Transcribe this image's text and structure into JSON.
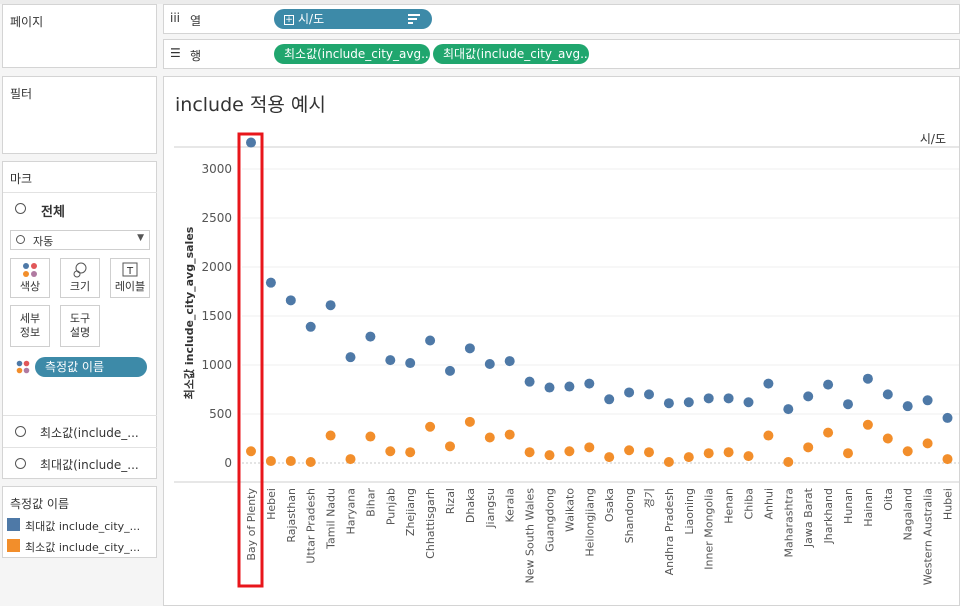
{
  "left": {
    "pages_title": "페이지",
    "filters_title": "필터",
    "marks_title": "마크",
    "marks_all": "전체",
    "mark_type": "자동",
    "btn_color": "색상",
    "btn_size": "크기",
    "btn_label": "레이블",
    "btn_detail_1": "세부",
    "btn_detail_2": "정보",
    "btn_tooltip_1": "도구",
    "btn_tooltip_2": "설명",
    "measure_names_pill": "측정값 이름",
    "mark_min": "최소값(include_...",
    "mark_max": "최대값(include_...",
    "legend_title": "측정값 이름",
    "legend_items": [
      {
        "label": "최대값 include_city_...",
        "color": "#4e79a7"
      },
      {
        "label": "최소값 include_city_...",
        "color": "#f28e2b"
      }
    ]
  },
  "shelves": {
    "columns_label": "열",
    "columns_pill": "시/도",
    "rows_label": "행",
    "rows_pill_1": "최소값(include_city_avg...",
    "rows_pill_2": "최대값(include_city_avg..."
  },
  "viz": {
    "title": "include 적용 예시",
    "header": "시/도",
    "y_axis_label": "최소값 include_city_avg_sales"
  },
  "chart_data": {
    "type": "scatter",
    "ylim": [
      -200,
      3550
    ],
    "yticks": [
      0,
      500,
      1000,
      1500,
      2000,
      2500,
      3000
    ],
    "categories": [
      "Bay of Plenty",
      "Hebei",
      "Rajasthan",
      "Uttar Pradesh",
      "Tamil Nadu",
      "Haryana",
      "Bihar",
      "Punjab",
      "Zhejiang",
      "Chhattisgarh",
      "Rizal",
      "Dhaka",
      "Jiangsu",
      "Kerala",
      "New South Wales",
      "Guangdong",
      "Waikato",
      "Heilongjiang",
      "Osaka",
      "Shandong",
      "경기",
      "Andhra Pradesh",
      "Liaoning",
      "Inner Mongolia",
      "Henan",
      "Chiba",
      "Anhui",
      "Maharashtra",
      "Jawa Barat",
      "Jharkhand",
      "Hunan",
      "Hainan",
      "Oita",
      "Nagaland",
      "Western Australia",
      "Hubei"
    ],
    "series": [
      {
        "name": "최대값 include_city_...",
        "color": "#4e79a7",
        "values": [
          3270,
          1840,
          1660,
          1390,
          1610,
          1080,
          1290,
          1050,
          1020,
          1250,
          940,
          1170,
          1010,
          1040,
          830,
          770,
          780,
          810,
          650,
          720,
          700,
          610,
          620,
          660,
          660,
          620,
          810,
          550,
          680,
          800,
          600,
          860,
          700,
          580,
          640,
          460
        ]
      },
      {
        "name": "최소값 include_city_...",
        "color": "#f28e2b",
        "values": [
          120,
          20,
          20,
          10,
          280,
          40,
          270,
          120,
          110,
          370,
          170,
          420,
          260,
          290,
          110,
          80,
          120,
          160,
          60,
          130,
          110,
          10,
          60,
          100,
          110,
          70,
          280,
          10,
          160,
          310,
          100,
          390,
          250,
          120,
          200,
          40
        ]
      }
    ]
  }
}
